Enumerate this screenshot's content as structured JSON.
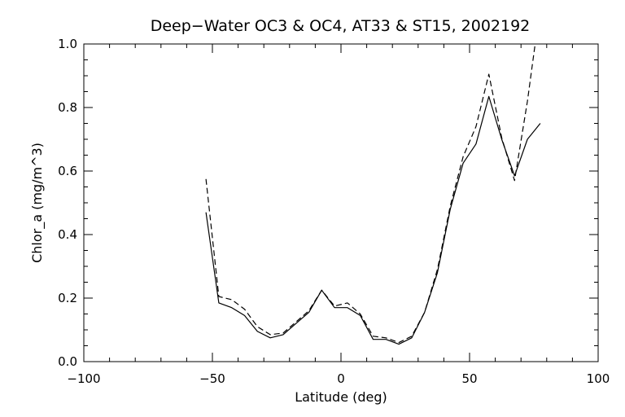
{
  "chart_data": {
    "type": "line",
    "title": "Deep−Water OC3 & OC4, AT33 & ST15, 2002192",
    "xlabel": "Latitude (deg)",
    "ylabel": "Chlor_a (mg/m^3)",
    "xlim": [
      -100,
      100
    ],
    "ylim": [
      0.0,
      1.0
    ],
    "x_ticks": [
      -100,
      -50,
      0,
      50,
      100
    ],
    "x_tick_labels": [
      "−100",
      "−50",
      "0",
      "50",
      "100"
    ],
    "y_ticks": [
      0.0,
      0.2,
      0.4,
      0.6,
      0.8,
      1.0
    ],
    "y_tick_labels": [
      "0.0",
      "0.2",
      "0.4",
      "0.6",
      "0.8",
      "1.0"
    ],
    "grid": false,
    "series": [
      {
        "style": "solid",
        "color": "#000000",
        "points": [
          [
            -52.5,
            0.47
          ],
          [
            -47.5,
            0.185
          ],
          [
            -42.5,
            0.17
          ],
          [
            -37.5,
            0.145
          ],
          [
            -32.5,
            0.095
          ],
          [
            -27.5,
            0.075
          ],
          [
            -22.5,
            0.085
          ],
          [
            -17.5,
            0.12
          ],
          [
            -12.5,
            0.155
          ],
          [
            -7.5,
            0.225
          ],
          [
            -2.5,
            0.17
          ],
          [
            2.5,
            0.17
          ],
          [
            7.5,
            0.145
          ],
          [
            12.5,
            0.07
          ],
          [
            17.5,
            0.07
          ],
          [
            22.5,
            0.055
          ],
          [
            27.5,
            0.075
          ],
          [
            32.5,
            0.155
          ],
          [
            37.5,
            0.28
          ],
          [
            42.5,
            0.48
          ],
          [
            47.5,
            0.625
          ],
          [
            52.5,
            0.685
          ],
          [
            57.5,
            0.835
          ],
          [
            62.5,
            0.7
          ],
          [
            67.5,
            0.585
          ],
          [
            72.5,
            0.7
          ],
          [
            77.5,
            0.75
          ]
        ]
      },
      {
        "style": "dashed",
        "color": "#000000",
        "points": [
          [
            -52.5,
            0.575
          ],
          [
            -47.5,
            0.205
          ],
          [
            -42.5,
            0.195
          ],
          [
            -37.5,
            0.165
          ],
          [
            -32.5,
            0.11
          ],
          [
            -27.5,
            0.085
          ],
          [
            -22.5,
            0.09
          ],
          [
            -17.5,
            0.125
          ],
          [
            -12.5,
            0.16
          ],
          [
            -7.5,
            0.225
          ],
          [
            -2.5,
            0.175
          ],
          [
            2.5,
            0.185
          ],
          [
            7.5,
            0.15
          ],
          [
            12.5,
            0.08
          ],
          [
            17.5,
            0.075
          ],
          [
            22.5,
            0.06
          ],
          [
            27.5,
            0.08
          ],
          [
            32.5,
            0.155
          ],
          [
            37.5,
            0.29
          ],
          [
            42.5,
            0.49
          ],
          [
            47.5,
            0.645
          ],
          [
            52.5,
            0.74
          ],
          [
            57.5,
            0.905
          ],
          [
            62.5,
            0.705
          ],
          [
            67.5,
            0.57
          ],
          [
            72.5,
            0.82
          ],
          [
            75.5,
            1.0
          ]
        ]
      }
    ]
  }
}
